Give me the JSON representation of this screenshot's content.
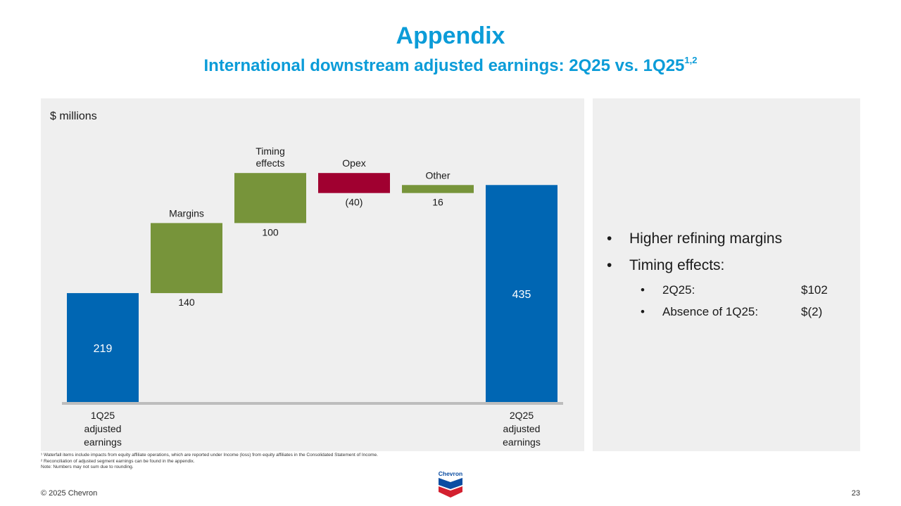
{
  "title": "Appendix",
  "subtitle": "International downstream adjusted earnings: 2Q25 vs. 1Q25",
  "subtitle_sup": "1,2",
  "chart_data": {
    "type": "waterfall",
    "units_label": "$ millions",
    "ylim": [
      0,
      460
    ],
    "colors": {
      "total": "#0066b3",
      "positive": "#77943a",
      "negative": "#a00030"
    },
    "items": [
      {
        "label_lines": [
          "1Q25",
          "adjusted",
          "earnings"
        ],
        "kind": "total",
        "value": 219,
        "value_label": "219"
      },
      {
        "label_lines": [
          "Margins"
        ],
        "kind": "delta",
        "value": 140,
        "value_label": "140"
      },
      {
        "label_lines": [
          "Timing",
          "effects"
        ],
        "kind": "delta",
        "value": 100,
        "value_label": "100"
      },
      {
        "label_lines": [
          "Opex"
        ],
        "kind": "delta",
        "value": -40,
        "value_label": "(40)"
      },
      {
        "label_lines": [
          "Other"
        ],
        "kind": "delta",
        "value": 16,
        "value_label": "16"
      },
      {
        "label_lines": [
          "2Q25",
          "adjusted",
          "earnings"
        ],
        "kind": "total",
        "value": 435,
        "value_label": "435"
      }
    ]
  },
  "bullets": {
    "b1": "Higher refining margins",
    "b2": "Timing effects:",
    "sub": [
      {
        "label": "2Q25:",
        "value": "$102"
      },
      {
        "label": "Absence of 1Q25:",
        "value": "$(2)"
      }
    ]
  },
  "footnotes": [
    "¹ Waterfall items include impacts from equity affiliate operations, which are reported under Income (loss) from equity affiliates in the Consolidated Statement of Income.",
    "² Reconciliation of adjusted segment earnings can be found in the appendix.",
    "Note: Numbers may not sum due to rounding."
  ],
  "copyright": "© 2025 Chevron",
  "page_number": "23",
  "logo_text": "Chevron"
}
